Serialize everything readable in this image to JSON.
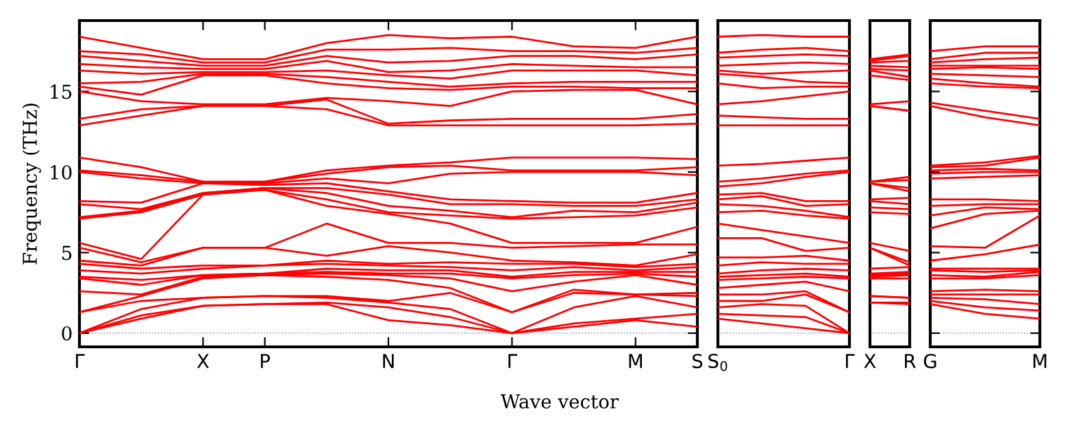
{
  "chart_data": [
    {
      "type": "line",
      "xlabel": "Wave vector",
      "ylabel": "Frequency (THz)",
      "categories": [
        "Γ",
        null,
        "X",
        "P",
        null,
        "N",
        null,
        "Γ",
        null,
        "M",
        "S"
      ],
      "ylim": [
        -0.85,
        19.4
      ],
      "yticks": [
        0,
        5,
        10,
        15
      ],
      "ref_lines": [
        {
          "axis": "y",
          "value": 0,
          "color": "#8888dd",
          "line_style": "dotted"
        }
      ],
      "series": [
        {
          "color": "#ff0000",
          "values": [
            0,
            0.9,
            1.7,
            1.8,
            1.8,
            0.8,
            0.5,
            0,
            0.4,
            0.8,
            0.4
          ]
        },
        {
          "color": "#ff0000",
          "values": [
            0,
            1.1,
            1.7,
            1.8,
            1.9,
            1.6,
            1.0,
            0,
            0.6,
            0.9,
            1.2
          ]
        },
        {
          "color": "#ff0000",
          "values": [
            0,
            1.5,
            2.2,
            2.3,
            2.2,
            1.9,
            1.5,
            0,
            1.6,
            2.3,
            1.6
          ]
        },
        {
          "color": "#ff0000",
          "values": [
            1.3,
            2.0,
            2.2,
            2.3,
            2.3,
            2.0,
            2.5,
            1.3,
            2.5,
            2.4,
            2.3
          ]
        },
        {
          "color": "#ff0000",
          "values": [
            1.3,
            2.3,
            3.4,
            3.6,
            3.5,
            3.3,
            2.8,
            1.3,
            2.7,
            2.4,
            2.5
          ]
        },
        {
          "color": "#ff0000",
          "values": [
            2.6,
            2.4,
            3.5,
            3.6,
            3.7,
            3.6,
            3.4,
            2.6,
            3.2,
            3.6,
            3.0
          ]
        },
        {
          "color": "#ff0000",
          "values": [
            3.4,
            3.0,
            3.6,
            3.7,
            3.8,
            3.7,
            3.7,
            3.4,
            3.6,
            3.7,
            3.5
          ]
        },
        {
          "color": "#ff0000",
          "values": [
            3.5,
            3.3,
            3.6,
            3.7,
            4.0,
            3.9,
            3.9,
            3.5,
            3.8,
            3.8,
            3.8
          ]
        },
        {
          "color": "#ff0000",
          "values": [
            3.9,
            3.7,
            4.0,
            4.2,
            4.3,
            4.2,
            4.1,
            3.9,
            4.1,
            3.9,
            4.1
          ]
        },
        {
          "color": "#ff0000",
          "values": [
            4.3,
            4.0,
            4.2,
            4.2,
            4.5,
            4.3,
            4.4,
            4.3,
            4.3,
            4.1,
            4.3
          ]
        },
        {
          "color": "#ff0000",
          "values": [
            4.5,
            4.2,
            5.3,
            5.3,
            4.8,
            5.4,
            5.0,
            4.5,
            4.4,
            4.2,
            4.9
          ]
        },
        {
          "color": "#ff0000",
          "values": [
            5.3,
            4.4,
            5.3,
            5.3,
            6.8,
            5.6,
            5.6,
            5.3,
            5.4,
            5.5,
            5.5
          ]
        },
        {
          "color": "#ff0000",
          "values": [
            5.6,
            4.6,
            8.6,
            8.9,
            7.9,
            7.4,
            6.8,
            5.6,
            5.6,
            5.6,
            6.6
          ]
        },
        {
          "color": "#ff0000",
          "values": [
            7.1,
            7.5,
            8.6,
            8.9,
            8.3,
            7.5,
            7.3,
            7.1,
            7.2,
            7.3,
            7.8
          ]
        },
        {
          "color": "#ff0000",
          "values": [
            7.2,
            7.6,
            8.7,
            9.0,
            8.7,
            7.9,
            7.6,
            7.2,
            7.6,
            7.5,
            8.1
          ]
        },
        {
          "color": "#ff0000",
          "values": [
            8.0,
            7.7,
            8.7,
            9.0,
            9.0,
            8.6,
            8.0,
            8.0,
            7.9,
            7.9,
            8.3
          ]
        },
        {
          "color": "#ff0000",
          "values": [
            8.2,
            8.1,
            9.3,
            9.2,
            9.3,
            8.8,
            8.3,
            8.2,
            8.1,
            8.1,
            8.7
          ]
        },
        {
          "color": "#ff0000",
          "values": [
            10.0,
            9.6,
            9.3,
            9.3,
            9.6,
            9.3,
            9.9,
            10.0,
            10.0,
            10.0,
            9.8
          ]
        },
        {
          "color": "#ff0000",
          "values": [
            10.1,
            9.8,
            9.4,
            9.4,
            9.9,
            10.3,
            10.4,
            10.1,
            10.1,
            10.1,
            10.3
          ]
        },
        {
          "color": "#ff0000",
          "values": [
            10.9,
            10.3,
            9.4,
            9.4,
            10.1,
            10.4,
            10.6,
            10.9,
            10.9,
            10.9,
            10.8
          ]
        },
        {
          "color": "#ff0000",
          "values": [
            12.9,
            13.5,
            14.1,
            14.1,
            13.9,
            12.9,
            12.9,
            12.9,
            12.9,
            12.9,
            13.0
          ]
        },
        {
          "color": "#ff0000",
          "values": [
            13.3,
            13.9,
            14.1,
            14.1,
            14.5,
            13.0,
            13.2,
            13.3,
            13.3,
            13.3,
            13.6
          ]
        },
        {
          "color": "#ff0000",
          "values": [
            15.0,
            14.4,
            14.2,
            14.2,
            14.6,
            14.4,
            14.1,
            15.0,
            15.1,
            15.1,
            14.2
          ]
        },
        {
          "color": "#ff0000",
          "values": [
            15.3,
            14.8,
            16.0,
            16.0,
            15.5,
            15.2,
            15.1,
            15.3,
            15.3,
            15.2,
            15.2
          ]
        },
        {
          "color": "#ff0000",
          "values": [
            15.5,
            15.6,
            16.1,
            16.1,
            15.9,
            15.6,
            15.3,
            15.5,
            15.6,
            15.6,
            15.6
          ]
        },
        {
          "color": "#ff0000",
          "values": [
            16.3,
            16.1,
            16.2,
            16.2,
            16.3,
            16.0,
            15.8,
            16.3,
            16.3,
            16.3,
            16.0
          ]
        },
        {
          "color": "#ff0000",
          "values": [
            16.7,
            16.5,
            16.4,
            16.4,
            16.9,
            16.2,
            16.3,
            16.7,
            16.6,
            16.5,
            16.5
          ]
        },
        {
          "color": "#ff0000",
          "values": [
            17.2,
            16.9,
            16.6,
            16.6,
            17.2,
            16.8,
            16.9,
            17.2,
            17.2,
            17.0,
            17.3
          ]
        },
        {
          "color": "#ff0000",
          "values": [
            17.5,
            17.3,
            16.8,
            16.8,
            17.6,
            17.6,
            17.7,
            17.5,
            17.5,
            17.4,
            17.7
          ]
        },
        {
          "color": "#ff0000",
          "values": [
            18.4,
            17.7,
            17.0,
            17.0,
            18.0,
            18.5,
            18.3,
            18.4,
            17.8,
            17.7,
            18.4
          ]
        }
      ]
    },
    {
      "type": "line",
      "categories": [
        "S$_{0}$",
        null,
        null,
        "Γ"
      ],
      "ylim": [
        -0.85,
        19.4
      ],
      "tick_labels": "x",
      "ref_lines": [
        {
          "axis": "y",
          "value": 0,
          "color": "#8888dd",
          "line_style": "dotted"
        }
      ],
      "series": [
        {
          "color": "#ff0000",
          "values": [
            0.9,
            0.6,
            0.3,
            0
          ]
        },
        {
          "color": "#ff0000",
          "values": [
            1.2,
            1.1,
            1.0,
            0
          ]
        },
        {
          "color": "#ff0000",
          "values": [
            1.6,
            1.8,
            1.7,
            0
          ]
        },
        {
          "color": "#ff0000",
          "values": [
            2.0,
            2.0,
            2.4,
            1.3
          ]
        },
        {
          "color": "#ff0000",
          "values": [
            2.4,
            2.4,
            2.6,
            1.3
          ]
        },
        {
          "color": "#ff0000",
          "values": [
            2.8,
            3.0,
            3.2,
            2.6
          ]
        },
        {
          "color": "#ff0000",
          "values": [
            3.3,
            3.4,
            3.5,
            3.4
          ]
        },
        {
          "color": "#ff0000",
          "values": [
            3.5,
            3.6,
            3.7,
            3.5
          ]
        },
        {
          "color": "#ff0000",
          "values": [
            3.7,
            3.9,
            4.0,
            3.9
          ]
        },
        {
          "color": "#ff0000",
          "values": [
            4.2,
            4.4,
            4.3,
            4.3
          ]
        },
        {
          "color": "#ff0000",
          "values": [
            4.7,
            4.7,
            4.8,
            4.5
          ]
        },
        {
          "color": "#ff0000",
          "values": [
            5.9,
            5.9,
            5.1,
            5.3
          ]
        },
        {
          "color": "#ff0000",
          "values": [
            6.8,
            6.4,
            6.0,
            5.6
          ]
        },
        {
          "color": "#ff0000",
          "values": [
            7.5,
            7.6,
            7.3,
            7.1
          ]
        },
        {
          "color": "#ff0000",
          "values": [
            8.0,
            7.9,
            7.6,
            7.2
          ]
        },
        {
          "color": "#ff0000",
          "values": [
            8.3,
            8.5,
            7.9,
            8.0
          ]
        },
        {
          "color": "#ff0000",
          "values": [
            8.6,
            8.7,
            8.2,
            8.2
          ]
        },
        {
          "color": "#ff0000",
          "values": [
            9.1,
            9.3,
            9.7,
            10.0
          ]
        },
        {
          "color": "#ff0000",
          "values": [
            9.4,
            9.6,
            9.9,
            10.1
          ]
        },
        {
          "color": "#ff0000",
          "values": [
            10.4,
            10.5,
            10.7,
            10.9
          ]
        },
        {
          "color": "#ff0000",
          "values": [
            12.9,
            12.9,
            12.9,
            12.9
          ]
        },
        {
          "color": "#ff0000",
          "values": [
            13.5,
            13.4,
            13.3,
            13.3
          ]
        },
        {
          "color": "#ff0000",
          "values": [
            14.2,
            14.4,
            14.7,
            15.0
          ]
        },
        {
          "color": "#ff0000",
          "values": [
            15.5,
            15.2,
            15.3,
            15.3
          ]
        },
        {
          "color": "#ff0000",
          "values": [
            16.1,
            15.9,
            15.6,
            15.5
          ]
        },
        {
          "color": "#ff0000",
          "values": [
            16.3,
            16.1,
            16.2,
            16.3
          ]
        },
        {
          "color": "#ff0000",
          "values": [
            16.6,
            16.7,
            16.8,
            16.7
          ]
        },
        {
          "color": "#ff0000",
          "values": [
            17.1,
            17.2,
            17.3,
            17.2
          ]
        },
        {
          "color": "#ff0000",
          "values": [
            17.4,
            17.6,
            17.7,
            17.5
          ]
        },
        {
          "color": "#ff0000",
          "values": [
            18.4,
            18.5,
            18.4,
            18.4
          ]
        }
      ]
    },
    {
      "type": "line",
      "categories": [
        "X",
        "R"
      ],
      "ylim": [
        -0.85,
        19.4
      ],
      "tick_labels": "x",
      "ref_lines": [
        {
          "axis": "y",
          "value": 0,
          "color": "#8888dd",
          "line_style": "dotted"
        }
      ],
      "series": [
        {
          "color": "#ff0000",
          "values": [
            1.9,
            1.8
          ]
        },
        {
          "color": "#ff0000",
          "values": [
            1.9,
            1.9
          ]
        },
        {
          "color": "#ff0000",
          "values": [
            2.3,
            2.2
          ]
        },
        {
          "color": "#ff0000",
          "values": [
            2.3,
            2.2
          ]
        },
        {
          "color": "#ff0000",
          "values": [
            3.4,
            3.4
          ]
        },
        {
          "color": "#ff0000",
          "values": [
            3.5,
            3.6
          ]
        },
        {
          "color": "#ff0000",
          "values": [
            3.6,
            3.7
          ]
        },
        {
          "color": "#ff0000",
          "values": [
            3.7,
            3.8
          ]
        },
        {
          "color": "#ff0000",
          "values": [
            4.0,
            4.1
          ]
        },
        {
          "color": "#ff0000",
          "values": [
            5.3,
            4.2
          ]
        },
        {
          "color": "#ff0000",
          "values": [
            5.3,
            4.4
          ]
        },
        {
          "color": "#ff0000",
          "values": [
            5.6,
            5.1
          ]
        },
        {
          "color": "#ff0000",
          "values": [
            7.5,
            7.4
          ]
        },
        {
          "color": "#ff0000",
          "values": [
            7.8,
            7.7
          ]
        },
        {
          "color": "#ff0000",
          "values": [
            8.2,
            8.0
          ]
        },
        {
          "color": "#ff0000",
          "values": [
            8.3,
            8.4
          ]
        },
        {
          "color": "#ff0000",
          "values": [
            9.3,
            8.8
          ]
        },
        {
          "color": "#ff0000",
          "values": [
            9.3,
            9.0
          ]
        },
        {
          "color": "#ff0000",
          "values": [
            9.4,
            9.5
          ]
        },
        {
          "color": "#ff0000",
          "values": [
            9.4,
            9.7
          ]
        },
        {
          "color": "#ff0000",
          "values": [
            14.1,
            13.8
          ]
        },
        {
          "color": "#ff0000",
          "values": [
            14.1,
            13.8
          ]
        },
        {
          "color": "#ff0000",
          "values": [
            14.2,
            14.4
          ]
        },
        {
          "color": "#ff0000",
          "values": [
            16.0,
            15.7
          ]
        },
        {
          "color": "#ff0000",
          "values": [
            16.3,
            15.9
          ]
        },
        {
          "color": "#ff0000",
          "values": [
            16.4,
            16.3
          ]
        },
        {
          "color": "#ff0000",
          "values": [
            16.6,
            16.5
          ]
        },
        {
          "color": "#ff0000",
          "values": [
            16.8,
            16.9
          ]
        },
        {
          "color": "#ff0000",
          "values": [
            16.9,
            17.2
          ]
        },
        {
          "color": "#ff0000",
          "values": [
            17.0,
            17.3
          ]
        }
      ]
    },
    {
      "type": "line",
      "categories": [
        "G",
        null,
        "M"
      ],
      "ylim": [
        -0.85,
        19.4
      ],
      "yticks": [
        {
          "value": 0,
          "label": null
        },
        {
          "value": 5,
          "label": null
        },
        {
          "value": 10,
          "label": null
        },
        {
          "value": 15,
          "label": null
        }
      ],
      "tick_labels": "x",
      "ref_lines": [
        {
          "axis": "y",
          "value": 0,
          "color": "#8888dd",
          "line_style": "dotted"
        }
      ],
      "series": [
        {
          "color": "#ff0000",
          "values": [
            1.8,
            1.2,
            0.9
          ]
        },
        {
          "color": "#ff0000",
          "values": [
            2.0,
            1.6,
            1.4
          ]
        },
        {
          "color": "#ff0000",
          "values": [
            2.2,
            2.1,
            1.8
          ]
        },
        {
          "color": "#ff0000",
          "values": [
            2.4,
            2.4,
            2.4
          ]
        },
        {
          "color": "#ff0000",
          "values": [
            2.6,
            2.7,
            2.6
          ]
        },
        {
          "color": "#ff0000",
          "values": [
            3.4,
            3.4,
            3.6
          ]
        },
        {
          "color": "#ff0000",
          "values": [
            3.6,
            3.5,
            3.8
          ]
        },
        {
          "color": "#ff0000",
          "values": [
            3.9,
            3.8,
            3.9
          ]
        },
        {
          "color": "#ff0000",
          "values": [
            4.0,
            4.0,
            4.0
          ]
        },
        {
          "color": "#ff0000",
          "values": [
            4.5,
            4.9,
            5.5
          ]
        },
        {
          "color": "#ff0000",
          "values": [
            5.4,
            5.3,
            7.3
          ]
        },
        {
          "color": "#ff0000",
          "values": [
            6.5,
            7.4,
            7.6
          ]
        },
        {
          "color": "#ff0000",
          "values": [
            7.3,
            7.8,
            7.7
          ]
        },
        {
          "color": "#ff0000",
          "values": [
            7.9,
            8.0,
            8.0
          ]
        },
        {
          "color": "#ff0000",
          "values": [
            8.3,
            8.3,
            8.2
          ]
        },
        {
          "color": "#ff0000",
          "values": [
            9.6,
            9.7,
            9.8
          ]
        },
        {
          "color": "#ff0000",
          "values": [
            9.9,
            10.0,
            10.0
          ]
        },
        {
          "color": "#ff0000",
          "values": [
            10.1,
            10.2,
            10.1
          ]
        },
        {
          "color": "#ff0000",
          "values": [
            10.3,
            10.4,
            10.9
          ]
        },
        {
          "color": "#ff0000",
          "values": [
            10.4,
            10.6,
            11.0
          ]
        },
        {
          "color": "#ff0000",
          "values": [
            14.1,
            13.4,
            12.9
          ]
        },
        {
          "color": "#ff0000",
          "values": [
            14.3,
            13.8,
            13.3
          ]
        },
        {
          "color": "#ff0000",
          "values": [
            15.5,
            15.3,
            15.2
          ]
        },
        {
          "color": "#ff0000",
          "values": [
            15.8,
            15.5,
            15.3
          ]
        },
        {
          "color": "#ff0000",
          "values": [
            16.1,
            16.0,
            15.9
          ]
        },
        {
          "color": "#ff0000",
          "values": [
            16.4,
            16.5,
            16.4
          ]
        },
        {
          "color": "#ff0000",
          "values": [
            16.6,
            16.6,
            16.6
          ]
        },
        {
          "color": "#ff0000",
          "values": [
            16.8,
            17.0,
            17.1
          ]
        },
        {
          "color": "#ff0000",
          "values": [
            17.0,
            17.4,
            17.4
          ]
        },
        {
          "color": "#ff0000",
          "values": [
            17.5,
            17.8,
            17.8
          ]
        }
      ]
    }
  ]
}
